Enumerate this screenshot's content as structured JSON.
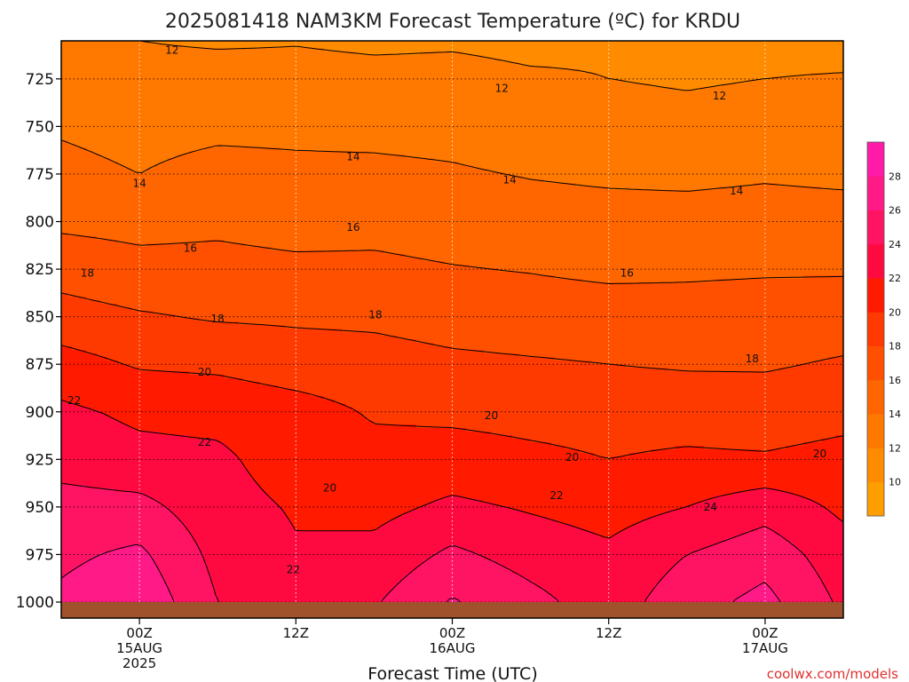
{
  "chart_data": {
    "type": "heatmap",
    "title": "2025081418 NAM3KM Forecast Temperature (ºC) for KRDU",
    "xlabel": "Forecast Time (UTC)",
    "ylabel": "",
    "credit": "coolwx.com/models",
    "y_axis": {
      "reversed": true,
      "range": [
        705,
        1000
      ],
      "ticks": [
        725,
        750,
        775,
        800,
        825,
        850,
        875,
        900,
        925,
        950,
        975,
        1000
      ],
      "tick_labels": [
        "725",
        "750",
        "775",
        "800",
        "825",
        "850",
        "875",
        "900",
        "925",
        "950",
        "975",
        "1000"
      ]
    },
    "x_axis": {
      "range_hours": [
        -6,
        54
      ],
      "ticks": [
        {
          "hour": 0,
          "lines": [
            "00Z",
            "15AUG",
            "2025"
          ]
        },
        {
          "hour": 12,
          "lines": [
            "12Z"
          ]
        },
        {
          "hour": 24,
          "lines": [
            "00Z",
            "16AUG"
          ]
        },
        {
          "hour": 36,
          "lines": [
            "12Z"
          ]
        },
        {
          "hour": 48,
          "lines": [
            "00Z",
            "17AUG"
          ]
        }
      ]
    },
    "grid": true,
    "colorbar": {
      "placement": "right",
      "levels": [
        8,
        10,
        12,
        14,
        16,
        18,
        20,
        22,
        24,
        26,
        28,
        30
      ],
      "colors": [
        "#ff9e00",
        "#ff8b00",
        "#ff7800",
        "#ff6600",
        "#ff5000",
        "#ff3a00",
        "#ff1a00",
        "#ff0a40",
        "#ff1464",
        "#ff1a88",
        "#ff1aa8"
      ],
      "tick_labels": [
        "10",
        "12",
        "14",
        "16",
        "18",
        "20",
        "22",
        "24",
        "26",
        "28"
      ]
    },
    "x": [
      -6,
      0,
      6,
      12,
      18,
      24,
      30,
      36,
      42,
      48,
      54
    ],
    "pressure_levels": [
      705,
      725,
      750,
      775,
      800,
      825,
      850,
      875,
      900,
      925,
      950,
      975,
      1000
    ],
    "temperature_c": [
      [
        12.4,
        12.0,
        11.8,
        11.9,
        11.7,
        11.8,
        11.6,
        11.8,
        11.5,
        11.6,
        11.5
      ],
      [
        13.0,
        12.6,
        12.7,
        12.6,
        12.5,
        12.5,
        12.2,
        12.0,
        11.8,
        12.0,
        12.1
      ],
      [
        13.8,
        13.4,
        13.6,
        13.6,
        13.5,
        13.4,
        13.0,
        12.8,
        12.6,
        12.9,
        12.8
      ],
      [
        14.5,
        14.0,
        14.6,
        14.4,
        14.4,
        14.2,
        13.9,
        13.7,
        13.6,
        13.8,
        13.6
      ],
      [
        15.6,
        15.4,
        15.6,
        15.3,
        15.4,
        15.1,
        14.8,
        14.7,
        14.7,
        14.8,
        14.8
      ],
      [
        17.2,
        16.6,
        16.6,
        16.4,
        16.4,
        16.1,
        15.9,
        15.6,
        15.7,
        15.8,
        15.8
      ],
      [
        18.8,
        18.2,
        17.8,
        17.7,
        17.6,
        17.2,
        17.0,
        16.9,
        16.8,
        16.9,
        17.1
      ],
      [
        20.8,
        19.8,
        19.6,
        19.0,
        18.8,
        18.4,
        18.2,
        18.0,
        17.8,
        17.8,
        18.2
      ],
      [
        22.4,
        21.6,
        21.4,
        20.8,
        19.8,
        19.6,
        19.4,
        19.3,
        19.2,
        19.0,
        19.4
      ],
      [
        23.2,
        22.6,
        22.4,
        21.0,
        20.6,
        20.8,
        20.4,
        20.0,
        20.3,
        20.2,
        20.6
      ],
      [
        24.8,
        24.6,
        22.8,
        21.8,
        21.4,
        22.4,
        21.8,
        21.2,
        22.0,
        23.2,
        21.6
      ],
      [
        25.6,
        26.4,
        23.4,
        22.2,
        22.6,
        24.4,
        23.2,
        22.4,
        24.0,
        25.2,
        22.8
      ],
      [
        26.4,
        27.6,
        24.0,
        22.8,
        23.8,
        26.2,
        24.6,
        23.0,
        25.2,
        26.6,
        23.6
      ]
    ],
    "contour_levels": [
      12,
      14,
      16,
      18,
      20,
      22,
      24,
      26
    ],
    "contour_labels": [
      {
        "text": "12",
        "x": 2.5,
        "p": 710
      },
      {
        "text": "12",
        "x": 27.8,
        "p": 730
      },
      {
        "text": "12",
        "x": 44.5,
        "p": 734
      },
      {
        "text": "14",
        "x": 0.0,
        "p": 780
      },
      {
        "text": "14",
        "x": 16.4,
        "p": 766
      },
      {
        "text": "14",
        "x": 28.4,
        "p": 778
      },
      {
        "text": "14",
        "x": 45.8,
        "p": 784
      },
      {
        "text": "16",
        "x": 3.9,
        "p": 814
      },
      {
        "text": "16",
        "x": 16.4,
        "p": 803
      },
      {
        "text": "16",
        "x": 37.4,
        "p": 827
      },
      {
        "text": "18",
        "x": -4.0,
        "p": 827
      },
      {
        "text": "18",
        "x": 6.0,
        "p": 851
      },
      {
        "text": "18",
        "x": 18.1,
        "p": 849
      },
      {
        "text": "18",
        "x": 47.0,
        "p": 872
      },
      {
        "text": "20",
        "x": 5.0,
        "p": 879
      },
      {
        "text": "20",
        "x": 27.0,
        "p": 902
      },
      {
        "text": "20",
        "x": 33.2,
        "p": 924
      },
      {
        "text": "20",
        "x": 52.2,
        "p": 922
      },
      {
        "text": "20",
        "x": 14.6,
        "p": 940
      },
      {
        "text": "22",
        "x": -5.0,
        "p": 894
      },
      {
        "text": "22",
        "x": 5.0,
        "p": 916
      },
      {
        "text": "22",
        "x": 32.0,
        "p": 944
      },
      {
        "text": "22",
        "x": 11.8,
        "p": 983
      },
      {
        "text": "24",
        "x": 43.8,
        "p": 950
      }
    ],
    "surface": {
      "label": "",
      "p": 1000
    }
  }
}
